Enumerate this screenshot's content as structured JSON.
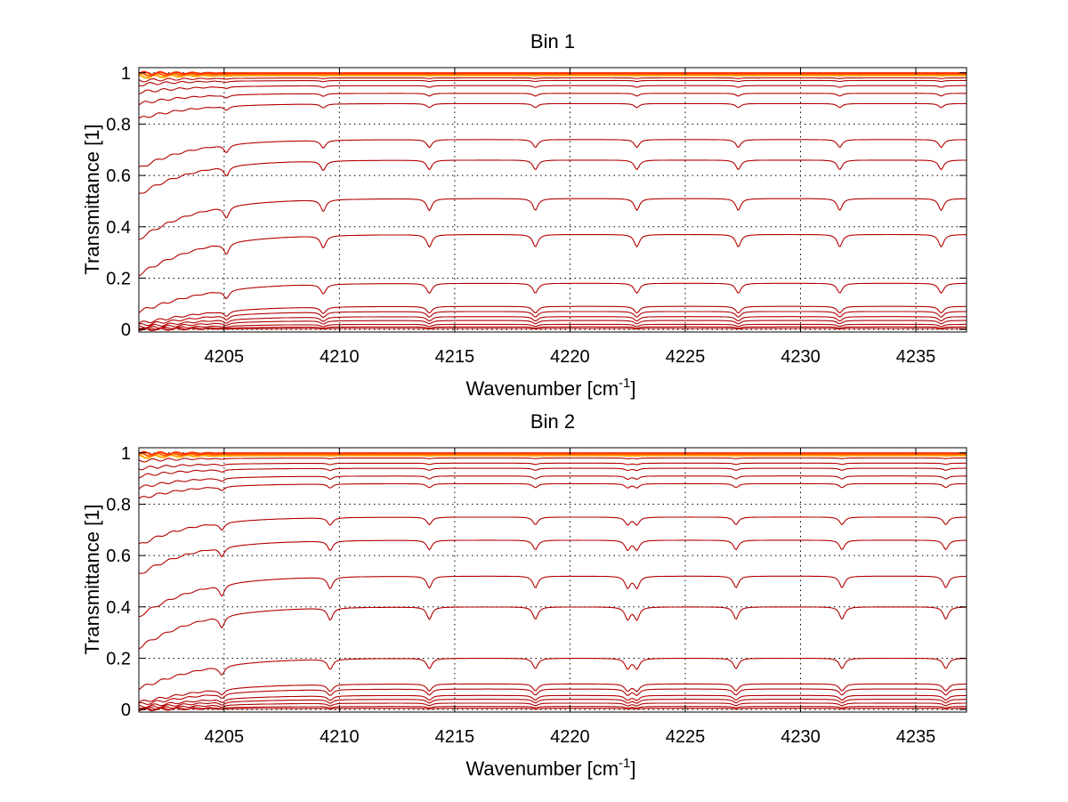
{
  "chart_data": [
    {
      "type": "line",
      "title": "Bin 1",
      "xlabel": "Wavenumber [cm",
      "xlabel_sup": "-1",
      "xlabel_end": "]",
      "ylabel": "Transmittance [1]",
      "xlim": [
        4201.3,
        4237.2
      ],
      "ylim": [
        -0.01,
        1.02
      ],
      "xticks": [
        4205,
        4210,
        4215,
        4220,
        4225,
        4230,
        4235
      ],
      "yticks": [
        0,
        0.2,
        0.4,
        0.6,
        0.8,
        1
      ],
      "grid": true,
      "lines_x": [
        4201.3,
        4237.2
      ],
      "absorption_lines_cm1": [
        4205.1,
        4209.3,
        4213.9,
        4218.5,
        4222.9,
        4227.3,
        4231.7,
        4236.1
      ],
      "series_levels": [
        0.999,
        0.995,
        0.99,
        0.98,
        0.97,
        0.95,
        0.92,
        0.88,
        0.74,
        0.66,
        0.51,
        0.37,
        0.18,
        0.09,
        0.07,
        0.05,
        0.035,
        0.02,
        0.01,
        0.004
      ]
    },
    {
      "type": "line",
      "title": "Bin 2",
      "xlabel": "Wavenumber [cm",
      "xlabel_sup": "-1",
      "xlabel_end": "]",
      "ylabel": "Transmittance [1]",
      "xlim": [
        4201.3,
        4237.2
      ],
      "ylim": [
        -0.01,
        1.02
      ],
      "xticks": [
        4205,
        4210,
        4215,
        4220,
        4225,
        4230,
        4235
      ],
      "yticks": [
        0,
        0.2,
        0.4,
        0.6,
        0.8,
        1
      ],
      "grid": true,
      "lines_x": [
        4201.3,
        4237.2
      ],
      "absorption_lines_cm1": [
        4204.9,
        4209.6,
        4213.9,
        4218.5,
        4222.5,
        4222.9,
        4227.2,
        4231.8,
        4236.3
      ],
      "series_levels": [
        0.999,
        0.995,
        0.99,
        0.98,
        0.96,
        0.94,
        0.91,
        0.88,
        0.75,
        0.66,
        0.52,
        0.4,
        0.2,
        0.1,
        0.08,
        0.055,
        0.04,
        0.025,
        0.012,
        0.005
      ]
    }
  ],
  "colors": {
    "series_main": "#b30000",
    "series_top": [
      "#ff3300",
      "#ff6600",
      "#ffaa00",
      "#cccc00",
      "#77cc00"
    ]
  }
}
